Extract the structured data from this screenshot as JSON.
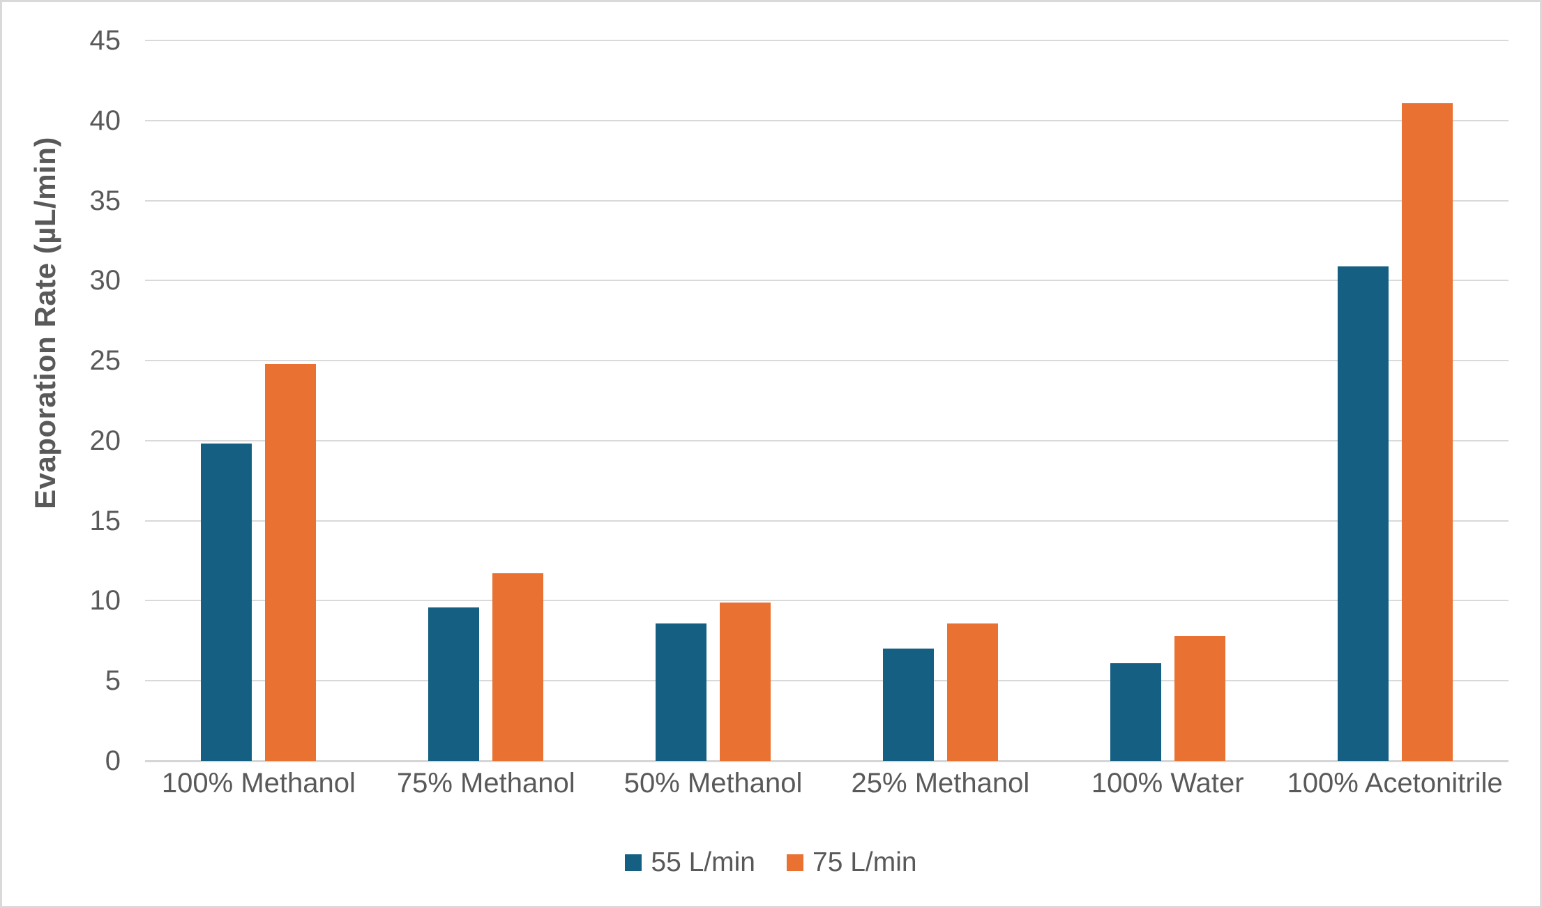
{
  "chart_data": {
    "type": "bar",
    "title": "",
    "categories": [
      "100% Methanol",
      "75% Methanol",
      "50% Methanol",
      "25% Methanol",
      "100% Water",
      "100% Acetonitrile"
    ],
    "series": [
      {
        "name": "55 L/min",
        "color": "#156082",
        "values": [
          19.8,
          9.6,
          8.6,
          7.0,
          6.1,
          30.9
        ]
      },
      {
        "name": "75 L/min",
        "color": "#E97132",
        "values": [
          24.8,
          11.7,
          9.9,
          8.6,
          7.8,
          41.1
        ]
      }
    ],
    "xlabel": "",
    "ylabel": "Evaporation Rate (µL/min)",
    "ylim": [
      0,
      45
    ],
    "ytick_step": 5,
    "yticks": [
      0,
      5,
      10,
      15,
      20,
      25,
      30,
      35,
      40,
      45
    ],
    "grid": "horizontal",
    "legend_position": "bottom"
  },
  "legend": {
    "items": [
      {
        "label": "55 L/min",
        "color": "#156082"
      },
      {
        "label": "75 L/min",
        "color": "#E97132"
      }
    ]
  },
  "style": {
    "background": "#FFFFFF",
    "border_color": "#D9D9D9",
    "gridline_color": "#D9D9D9",
    "axis_line_color": "#D6D6D6",
    "text_color": "#595959"
  }
}
